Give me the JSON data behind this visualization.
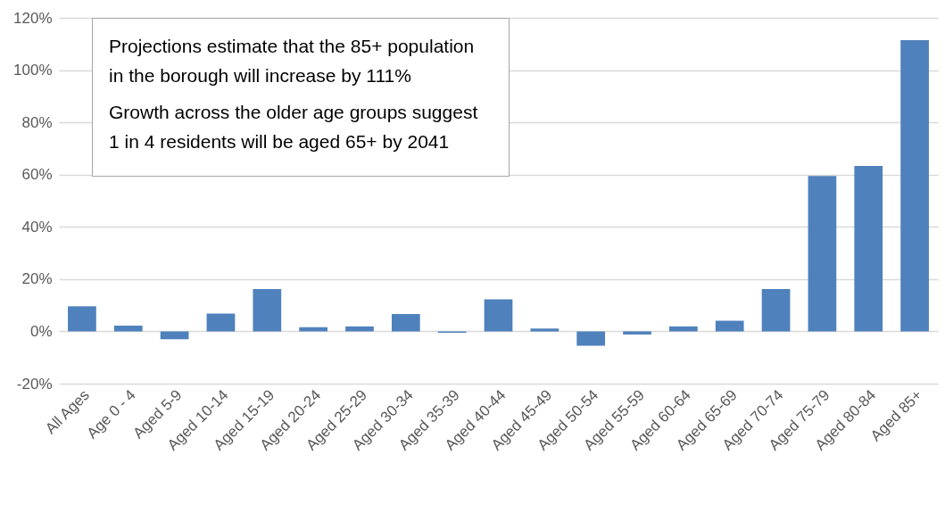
{
  "chart_data": {
    "type": "bar",
    "categories": [
      "All Ages",
      "Age 0 - 4",
      "Aged 5-9",
      "Aged 10-14",
      "Aged 15-19",
      "Aged 20-24",
      "Aged 25-29",
      "Aged 30-34",
      "Aged 35-39",
      "Aged 40-44",
      "Aged 45-49",
      "Aged 50-54",
      "Aged 55-59",
      "Aged 60-64",
      "Aged 65-69",
      "Aged 70-74",
      "Aged 75-79",
      "Aged 80-84",
      "Aged 85+"
    ],
    "values": [
      9.6,
      2.2,
      -3,
      6.8,
      16.2,
      1.6,
      1.9,
      6.6,
      -0.5,
      12.3,
      1.1,
      -5.5,
      -1.2,
      1.9,
      4.1,
      16.2,
      59.5,
      63.3,
      111.5
    ],
    "color": "#4f81bd",
    "ylim": [
      -20,
      120
    ],
    "yticks": [
      {
        "value": -20,
        "label": "-20%"
      },
      {
        "value": 0,
        "label": "0%"
      },
      {
        "value": 20,
        "label": "20%"
      },
      {
        "value": 40,
        "label": "40%"
      },
      {
        "value": 60,
        "label": "60%"
      },
      {
        "value": 80,
        "label": "80%"
      },
      {
        "value": 100,
        "label": "100%"
      },
      {
        "value": 120,
        "label": "120%"
      }
    ],
    "grid": "y",
    "annotations": [
      "Projections estimate that the 85+ population in the borough will increase by 111%",
      "Growth across the older age groups suggest 1 in 4 residents will be aged 65+ by 2041"
    ]
  }
}
